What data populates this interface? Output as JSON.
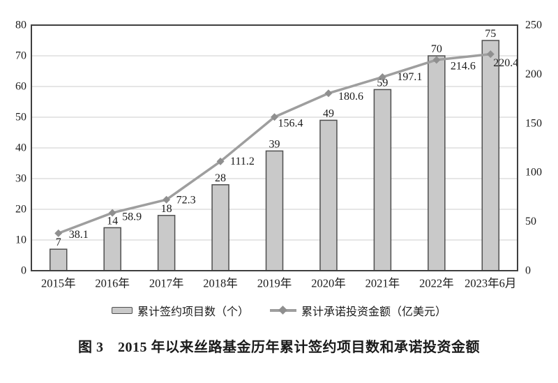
{
  "figure": {
    "caption": "图 3　2015 年以来丝路基金历年累计签约项目数和承诺投资金额"
  },
  "chart_data": {
    "type": "bar+line",
    "title": "",
    "categories": [
      "2015年",
      "2016年",
      "2017年",
      "2018年",
      "2019年",
      "2020年",
      "2021年",
      "2022年",
      "2023年6月"
    ],
    "series": [
      {
        "name": "累计签约项目数（个）",
        "type": "bar",
        "axis": "left",
        "values": [
          7,
          14,
          18,
          28,
          39,
          49,
          59,
          70,
          75
        ]
      },
      {
        "name": "累计承诺投资金额（亿美元）",
        "type": "line",
        "marker": "diamond",
        "axis": "right",
        "values": [
          38.1,
          58.9,
          72.3,
          111.2,
          156.4,
          180.6,
          197.1,
          214.6,
          220.4
        ]
      }
    ],
    "left_axis": {
      "min": 0,
      "max": 80,
      "ticks": [
        0,
        10,
        20,
        30,
        40,
        50,
        60,
        70,
        80
      ]
    },
    "right_axis": {
      "min": 0,
      "max": 250,
      "ticks": [
        0,
        50,
        100,
        150,
        200,
        250
      ]
    },
    "grid": "horizontal gridlines at left-axis ticks",
    "legend_position": "bottom",
    "data_labels": "shown for every bar and every line point"
  },
  "colors": {
    "background": "#ffffff",
    "bar_fill": "#c9c9c9",
    "bar_border": "#4f4f4f",
    "line": "#9e9e9e",
    "marker": "#8f8f8f",
    "grid": "#cccccc",
    "frame": "#3f3f3f",
    "text": "#1b1b1b"
  }
}
